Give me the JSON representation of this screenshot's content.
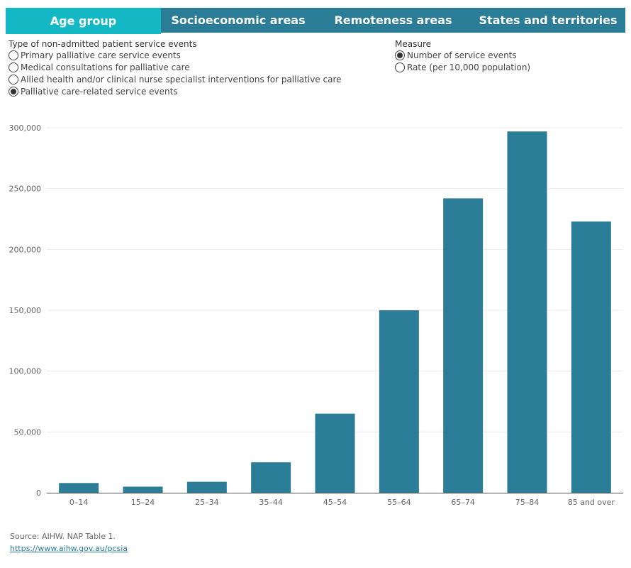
{
  "tabs": [
    {
      "label": "Age group",
      "active": true
    },
    {
      "label": "Socioeconomic areas",
      "active": false
    },
    {
      "label": "Remoteness areas",
      "active": false
    },
    {
      "label": "States and territories",
      "active": false
    }
  ],
  "filters": {
    "type": {
      "title": "Type of non-admitted patient service events",
      "options": [
        {
          "label": "Primary palliative care service events",
          "checked": false
        },
        {
          "label": "Medical consultations for palliative care",
          "checked": false
        },
        {
          "label": "Allied health and/or clinical nurse specialist interventions for palliative care",
          "checked": false
        },
        {
          "label": "Palliative care-related service events",
          "checked": true
        }
      ]
    },
    "measure": {
      "title": "Measure",
      "options": [
        {
          "label": "Number of service events",
          "checked": true
        },
        {
          "label": "Rate (per 10,000 population)",
          "checked": false
        }
      ]
    }
  },
  "chart_data": {
    "type": "bar",
    "categories": [
      "0–14",
      "15–24",
      "25–34",
      "35–44",
      "45–54",
      "55–64",
      "65–74",
      "75–84",
      "85 and over"
    ],
    "values": [
      8000,
      5000,
      9000,
      25000,
      65000,
      150000,
      242000,
      297000,
      223000
    ],
    "ylim": [
      0,
      300000
    ],
    "yticks": [
      "0",
      "50,000",
      "100,000",
      "150,000",
      "200,000",
      "250,000",
      "300,000"
    ],
    "ytick_values": [
      0,
      50000,
      100000,
      150000,
      200000,
      250000,
      300000
    ],
    "bar_color": "#2b7d97",
    "grid": true,
    "title": "",
    "xlabel": "",
    "ylabel": ""
  },
  "source": {
    "text": "Source: AIHW. NAP Table 1.",
    "link": "https://www.aihw.gov.au/pcsia"
  }
}
